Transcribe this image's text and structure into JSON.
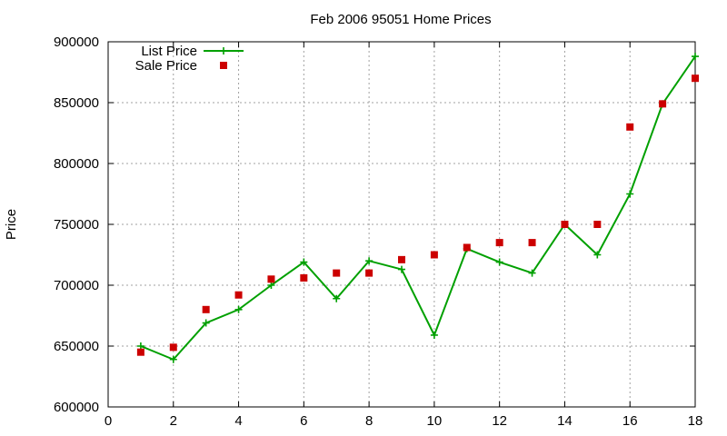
{
  "chart_data": {
    "type": "line",
    "title": "Feb 2006 95051 Home Prices",
    "xlabel": "",
    "ylabel": "Price",
    "xlim": [
      0,
      18
    ],
    "ylim": [
      600000,
      900000
    ],
    "x_ticks": [
      0,
      2,
      4,
      6,
      8,
      10,
      12,
      14,
      16,
      18
    ],
    "y_ticks": [
      600000,
      650000,
      700000,
      750000,
      800000,
      850000,
      900000
    ],
    "grid": true,
    "legend_position": "top-left",
    "series": [
      {
        "name": "List Price",
        "style": "line+cross",
        "color": "#00a000",
        "x": [
          1,
          2,
          3,
          4,
          5,
          6,
          7,
          8,
          9,
          10,
          11,
          12,
          13,
          14,
          15,
          16,
          17,
          18
        ],
        "values": [
          650000,
          639000,
          669000,
          680000,
          700000,
          719000,
          689000,
          720000,
          713000,
          659000,
          730000,
          719000,
          710000,
          750000,
          725000,
          775000,
          849000,
          888000
        ]
      },
      {
        "name": "Sale Price",
        "style": "square-markers",
        "color": "#cc0000",
        "x": [
          1,
          2,
          3,
          4,
          5,
          6,
          7,
          8,
          9,
          10,
          11,
          12,
          13,
          14,
          15,
          16,
          17,
          18
        ],
        "values": [
          645000,
          649000,
          680000,
          692000,
          705000,
          706000,
          710000,
          710000,
          721000,
          725000,
          731000,
          735000,
          735000,
          750000,
          750000,
          830000,
          849000,
          870000
        ]
      }
    ]
  }
}
